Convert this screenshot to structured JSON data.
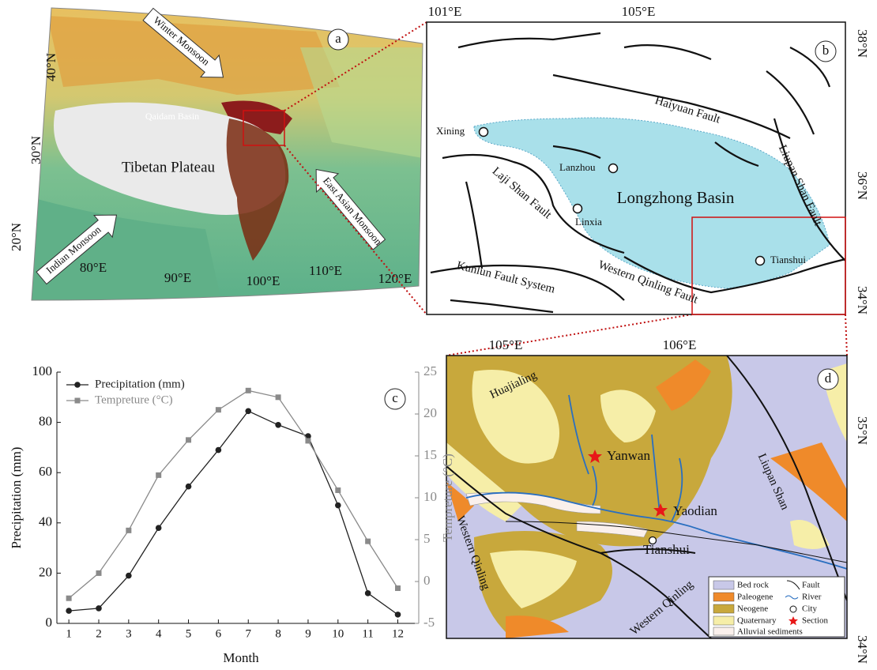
{
  "panel_a": {
    "letter": "a",
    "place_names": [
      "Qaidam Basin",
      "Tibetan Plateau"
    ],
    "arrows": [
      "Winter Monsoon",
      "East Asian Monsoon",
      "Indian Monsoon"
    ],
    "latitudes": [
      "40°N",
      "30°N",
      "20°N"
    ],
    "longitudes": [
      "80°E",
      "90°E",
      "100°E",
      "110°E",
      "120°E"
    ]
  },
  "panel_b": {
    "letter": "b",
    "longitudes": [
      "101°E",
      "105°E"
    ],
    "latitudes": [
      "38°N",
      "36°N",
      "34°N"
    ],
    "cities": [
      "Xining",
      "Lanzhou",
      "Linxia",
      "Tianshui"
    ],
    "basin": "Longzhong Basin",
    "faults": [
      "Haiyuan Fault",
      "Liupan Shan Fault",
      "Laji Shan Fault",
      "Kunlun Fault System",
      "Western Qinling Fault"
    ]
  },
  "panel_d": {
    "letter": "d",
    "longitudes": [
      "105°E",
      "106°E"
    ],
    "latitudes": [
      "35°N",
      "34°N"
    ],
    "places": [
      "Huajialing",
      "Liupan Shan",
      "Western Qinling",
      "Western Qinling"
    ],
    "sections": [
      "Yanwan",
      "Yaodian"
    ],
    "city": "Tianshui",
    "legend_units": [
      "Bed rock",
      "Paleogene",
      "Neogene",
      "Quaternary",
      "Alluvial sediments"
    ],
    "legend_symbols": [
      "Fault",
      "River",
      "City",
      "Section"
    ]
  },
  "chart_data": {
    "type": "line",
    "letter": "c",
    "x_label": "Month",
    "y_label": "Precipitation (mm)",
    "y2_label": "Tempreture (°C)",
    "x": [
      1,
      2,
      3,
      4,
      5,
      6,
      7,
      8,
      9,
      10,
      11,
      12
    ],
    "xlim": [
      0.6,
      12.7
    ],
    "xticks": [
      1,
      2,
      3,
      4,
      5,
      6,
      7,
      8,
      9,
      10,
      11,
      12
    ],
    "ylim": [
      0,
      100
    ],
    "yticks": [
      0,
      20,
      40,
      60,
      80,
      100
    ],
    "y2lim": [
      -5,
      25
    ],
    "y2ticks": [
      -5,
      0,
      5,
      10,
      15,
      20,
      25
    ],
    "legend": "upper left",
    "series": [
      {
        "name": "Precipitation (mm)",
        "color": "#222222",
        "marker": "circle",
        "values": [
          5,
          6,
          19,
          38,
          54.5,
          69,
          84.5,
          79,
          74.5,
          47,
          12,
          3.5
        ]
      },
      {
        "name": "Tempreture (°C)",
        "color": "#8a8a8a",
        "marker": "square",
        "axis": "y2",
        "values": [
          -2,
          1,
          6.1,
          12.7,
          16.9,
          20.5,
          22.8,
          22,
          16.8,
          10.9,
          4.8,
          -0.8
        ]
      }
    ]
  }
}
